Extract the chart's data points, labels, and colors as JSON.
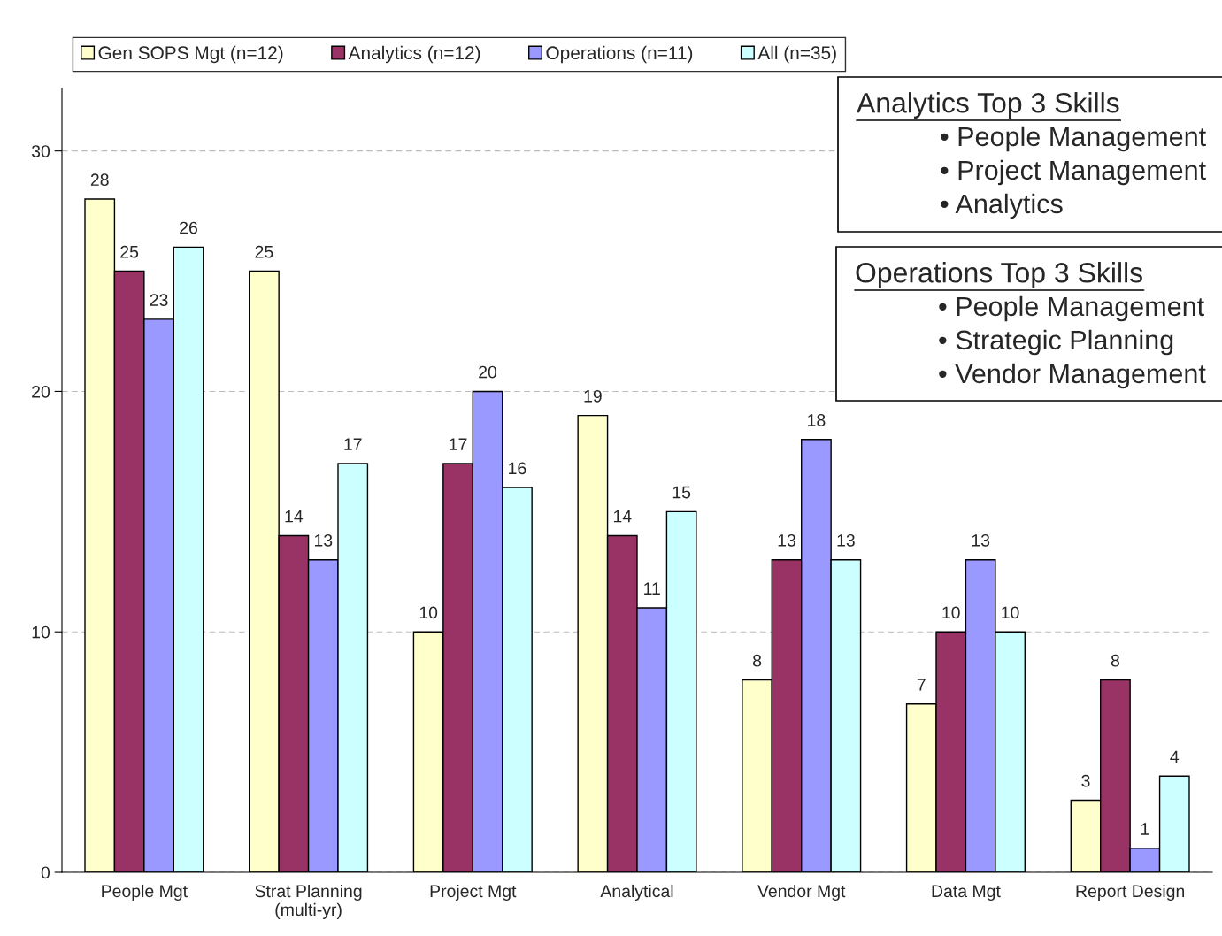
{
  "chart_data": {
    "type": "bar",
    "categories": [
      "People Mgt",
      "Strat Planning\n(multi-yr)",
      "Project Mgt",
      "Analytical",
      "Vendor Mgt",
      "Data Mgt",
      "Report Design"
    ],
    "series": [
      {
        "name": "Gen SOPS Mgt (n=12)",
        "color": "#ffffcc",
        "values": [
          28,
          25,
          10,
          19,
          8,
          7,
          3
        ]
      },
      {
        "name": "Analytics (n=12)",
        "color": "#993366",
        "values": [
          25,
          14,
          17,
          14,
          13,
          10,
          8
        ]
      },
      {
        "name": "Operations (n=11)",
        "color": "#9999ff",
        "values": [
          23,
          13,
          20,
          11,
          18,
          13,
          1
        ]
      },
      {
        "name": "All (n=35)",
        "color": "#ccffff",
        "values": [
          26,
          17,
          16,
          15,
          13,
          10,
          4
        ]
      }
    ],
    "ylim": [
      0,
      32.6
    ],
    "yticks": [
      0,
      10,
      20,
      30
    ],
    "grid": "y",
    "legend": "top",
    "data_labels": true,
    "annotations": [
      "Analytics Top 3 Skills\n• People Management\n• Project Management\n• Analytics",
      "Operations Top 3 Skills\n• People Management\n• Strategic Planning\n• Vendor Management"
    ]
  }
}
